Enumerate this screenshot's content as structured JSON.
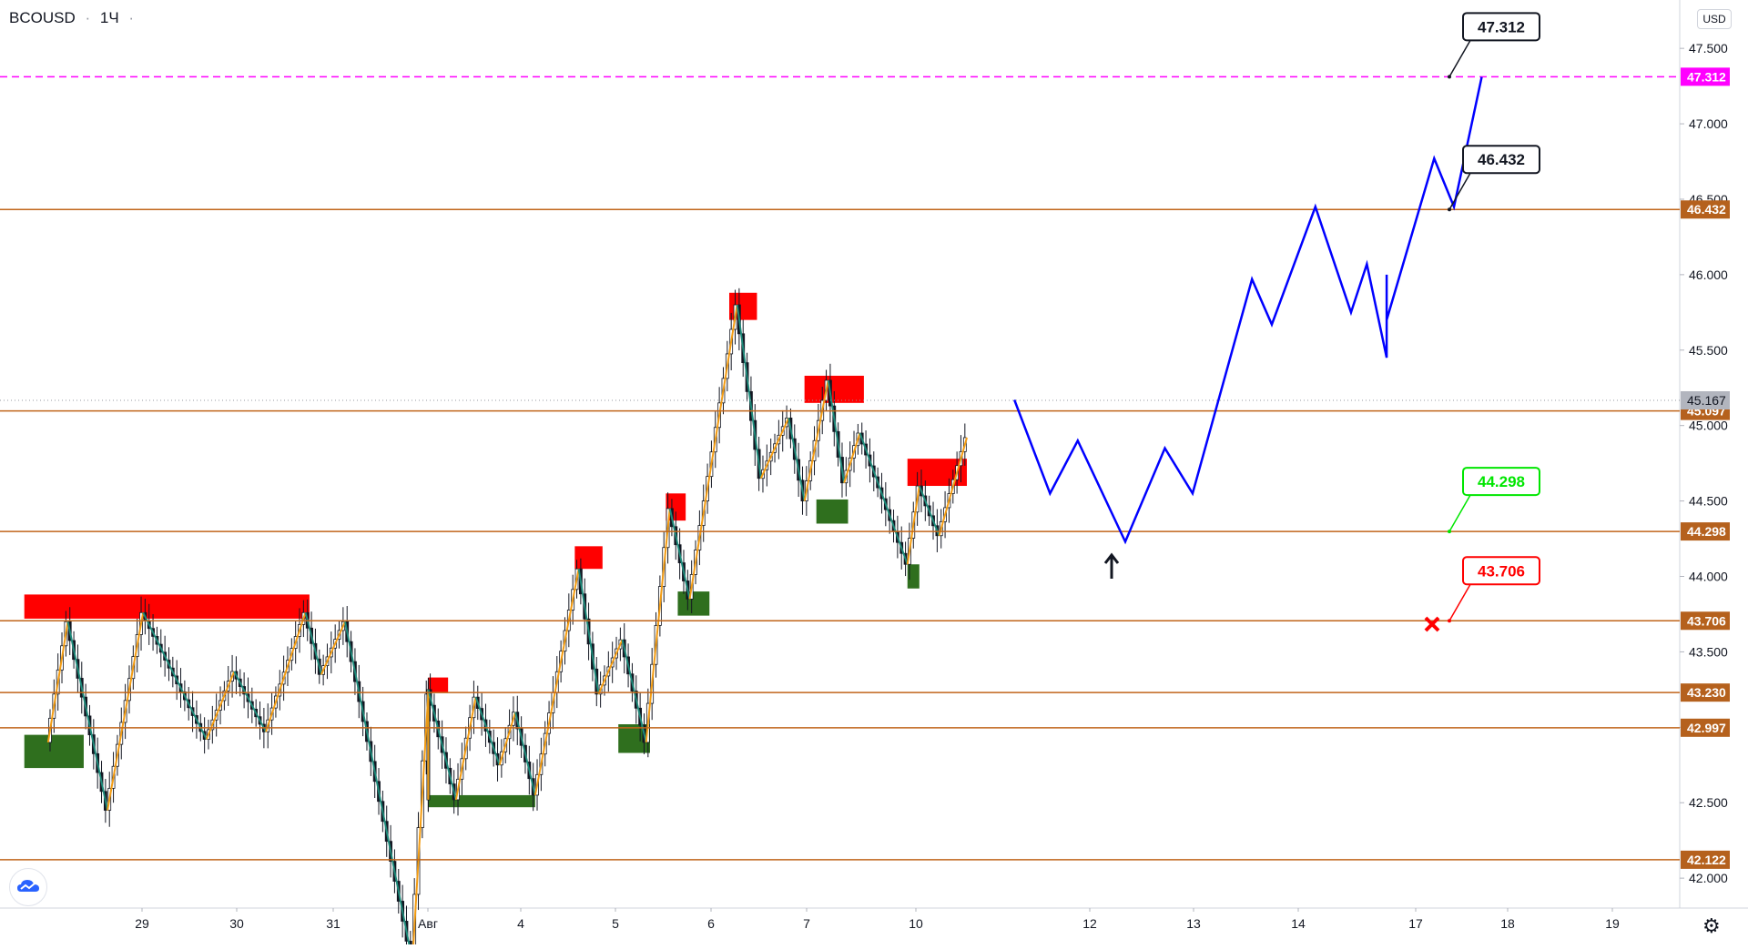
{
  "header": {
    "symbol": "BCOUSD",
    "interval": "1Ч",
    "currency": "USD"
  },
  "icons": {
    "logo": "tradingview-cloud-icon",
    "settings": "gear-icon",
    "up_arrow": "up-arrow-icon",
    "stop": "x-mark-icon"
  },
  "colors": {
    "level": "#c0651a",
    "target": "#ff00ff",
    "forecast": "#0000ff",
    "resistance_zone": "#ff0000",
    "support_zone": "#2f6f1e",
    "bull_candle": "#2a2a2a",
    "zigzag_up": "#f39c12",
    "zigzag_down": "#1e8a7a",
    "tp_green": "#00e600",
    "sl_red": "#ff0000"
  },
  "chart_data": {
    "type": "line",
    "y_axis": {
      "ylim": [
        41.85,
        47.7
      ],
      "ticks": [
        "47.500",
        "47.000",
        "46.500",
        "46.000",
        "45.500",
        "45.000",
        "44.500",
        "44.000",
        "43.500",
        "43.000",
        "42.500",
        "42.000"
      ]
    },
    "x_axis": {
      "ticks": [
        "29",
        "30",
        "31",
        "Авг",
        "4",
        "5",
        "6",
        "7",
        "10",
        "12",
        "13",
        "14",
        "17",
        "18",
        "19"
      ]
    },
    "price_levels": [
      {
        "value": "47.312",
        "style": "dashed-magenta"
      },
      {
        "value": "46.432",
        "style": "brown"
      },
      {
        "value": "45.097",
        "style": "brown"
      },
      {
        "value": "44.298",
        "style": "brown"
      },
      {
        "value": "43.706",
        "style": "brown"
      },
      {
        "value": "43.230",
        "style": "brown"
      },
      {
        "value": "42.997",
        "style": "brown"
      },
      {
        "value": "42.122",
        "style": "brown"
      }
    ],
    "last_price": "45.167",
    "annotations": [
      {
        "text": "47.312",
        "kind": "target"
      },
      {
        "text": "46.432",
        "kind": "target"
      },
      {
        "text": "44.298",
        "kind": "entry"
      },
      {
        "text": "43.706",
        "kind": "stop"
      }
    ],
    "forecast_path": [
      [
        45.17,
        "Aug 11 02:00"
      ],
      [
        44.55,
        "Aug 11 11:00"
      ],
      [
        44.9,
        "Aug 11 18:00"
      ],
      [
        44.23,
        "Aug 12 06:00"
      ],
      [
        44.85,
        "Aug 12 16:00"
      ],
      [
        44.55,
        "Aug 12 23:00"
      ],
      [
        45.97,
        "Aug 13 14:00"
      ],
      [
        45.67,
        "Aug 13 19:00"
      ],
      [
        46.45,
        "Aug 14 06:00"
      ],
      [
        45.75,
        "Aug 14 15:00"
      ],
      [
        46.07,
        "Aug 14 19:00"
      ],
      [
        45.45,
        "Aug 15 07:00"
      ],
      [
        46.0,
        "Aug 15 17:00"
      ],
      [
        45.7,
        "Aug 15 21:00"
      ],
      [
        46.77,
        "Aug 17 11:00"
      ],
      [
        46.45,
        "Aug 17 16:00"
      ],
      [
        47.31,
        "Aug 17 23:00"
      ]
    ],
    "zigzag": [
      [
        42.9,
        "Jul 28 00:00"
      ],
      [
        43.7,
        "Jul 28 05:00"
      ],
      [
        42.45,
        "Jul 28 15:00"
      ],
      [
        43.76,
        "Jul 29 00:00"
      ],
      [
        42.92,
        "Jul 29 16:00"
      ],
      [
        43.37,
        "Jul 29 23:00"
      ],
      [
        42.97,
        "Jul 30 07:00"
      ],
      [
        43.76,
        "Jul 30 17:00"
      ],
      [
        43.35,
        "Jul 30 21:00"
      ],
      [
        43.7,
        "Jul 31 03:00"
      ],
      [
        41.45,
        "Jul 31 20:00"
      ],
      [
        43.22,
        "Aug 2 05:00"
      ],
      [
        42.52,
        "Aug 2 13:00"
      ],
      [
        43.25,
        "Aug 2 22:00"
      ],
      [
        42.52,
        "Aug 3 06:00"
      ],
      [
        43.2,
        "Aug 3 11:00"
      ],
      [
        42.75,
        "Aug 3 17:00"
      ],
      [
        43.1,
        "Aug 3 21:00"
      ],
      [
        42.55,
        "Aug 4 02:00"
      ],
      [
        44.05,
        "Aug 4 13:00"
      ],
      [
        43.22,
        "Aug 4 18:00"
      ],
      [
        43.58,
        "Aug 5 00:00"
      ],
      [
        42.9,
        "Aug 5 06:00"
      ],
      [
        44.45,
        "Aug 5 12:00"
      ],
      [
        43.85,
        "Aug 5 17:00"
      ],
      [
        45.8,
        "Aug 6 05:00"
      ],
      [
        44.65,
        "Aug 6 11:00"
      ],
      [
        45.05,
        "Aug 6 18:00"
      ],
      [
        44.5,
        "Aug 6 22:00"
      ],
      [
        45.3,
        "Aug 7 04:00"
      ],
      [
        44.62,
        "Aug 7 08:00"
      ],
      [
        44.95,
        "Aug 7 12:00"
      ],
      [
        44.08,
        "Aug 8 00:00"
      ],
      [
        44.6,
        "Aug 10 02:00"
      ],
      [
        44.27,
        "Aug 10 07:00"
      ],
      [
        44.92,
        "Aug 10 14:00"
      ]
    ],
    "zones": [
      {
        "kind": "resistance",
        "from": "Jul 27 18:00",
        "to": "Jul 30 18:00",
        "low": 43.72,
        "high": 43.88
      },
      {
        "kind": "resistance",
        "from": "Aug 2 06:00",
        "to": "Aug 3 04:00",
        "low": 43.23,
        "high": 43.33
      },
      {
        "kind": "resistance",
        "from": "Aug 4 12:00",
        "to": "Aug 4 19:00",
        "low": 44.05,
        "high": 44.2
      },
      {
        "kind": "resistance",
        "from": "Aug 5 11:00",
        "to": "Aug 5 16:00",
        "low": 44.37,
        "high": 44.55
      },
      {
        "kind": "resistance",
        "from": "Aug 6 03:00",
        "to": "Aug 6 10:00",
        "low": 45.7,
        "high": 45.88
      },
      {
        "kind": "resistance",
        "from": "Aug 6 22:00",
        "to": "Aug 7 13:00",
        "low": 45.15,
        "high": 45.33
      },
      {
        "kind": "resistance",
        "from": "Aug 9 19:00",
        "to": "Aug 10 14:00",
        "low": 44.6,
        "high": 44.78
      },
      {
        "kind": "support",
        "from": "Jul 27 18:00",
        "to": "Jul 28 09:00",
        "low": 42.73,
        "high": 42.95
      },
      {
        "kind": "support",
        "from": "Aug 1 17:00",
        "to": "Aug 4 02:00",
        "low": 42.47,
        "high": 42.55
      },
      {
        "kind": "support",
        "from": "Aug 4 23:00",
        "to": "Aug 5 07:00",
        "low": 42.83,
        "high": 43.02
      },
      {
        "kind": "support",
        "from": "Aug 5 14:00",
        "to": "Aug 5 22:00",
        "low": 43.74,
        "high": 43.9
      },
      {
        "kind": "support",
        "from": "Aug 7 01:00",
        "to": "Aug 7 09:00",
        "low": 44.35,
        "high": 44.51
      },
      {
        "kind": "support",
        "from": "Aug 9 19:00",
        "to": "Aug 10 02:00",
        "low": 43.92,
        "high": 44.08
      }
    ]
  }
}
